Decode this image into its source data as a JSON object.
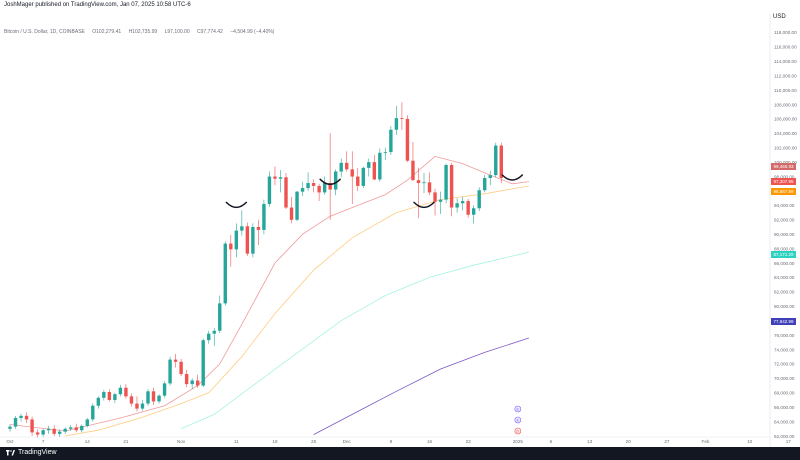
{
  "header": {
    "publisher": "JoshMager published on TradingView.com, Jan 07, 2025 10:58 UTC-6",
    "currency": "USD",
    "symbol_parts": [
      "Bitcoin / U.S. Dollar, 1D, COINBASE",
      "O102,279.41",
      "H102,735.99",
      "L97,100.00",
      "C97,774.42",
      "−4,504.99 (−4.40%)"
    ]
  },
  "footer": {
    "brand": "TradingView"
  },
  "price_tags": [
    {
      "label": "99,455.93",
      "value": 99456,
      "color": "#d36a6a"
    },
    {
      "label": "97,307.95",
      "value": 97308,
      "color": "#ef5350"
    },
    {
      "label": "95,857.59",
      "value": 95858,
      "color": "#ff9800"
    },
    {
      "label": "87,171.29",
      "value": 87171,
      "color": "#2bd2c0"
    },
    {
      "label": "77,842.99",
      "value": 77843,
      "color": "#3f3fb8"
    }
  ],
  "event_markers": [
    "E",
    "E",
    "D"
  ],
  "chart_data": {
    "type": "candlestick",
    "title": "Bitcoin / U.S. Dollar, 1D, COINBASE",
    "ylim": [
      62000,
      120000
    ],
    "y_ticks": [
      62000,
      64000,
      66000,
      68000,
      70000,
      72000,
      74000,
      76000,
      78000,
      80000,
      82000,
      84000,
      86000,
      88000,
      90000,
      92000,
      94000,
      96000,
      98000,
      100000,
      102000,
      104000,
      106000,
      108000,
      110000,
      112000,
      114000,
      116000,
      118000
    ],
    "y_tick_labels": [
      "62,000.00",
      "64,000.00",
      "66,000.00",
      "68,000.00",
      "70,000.00",
      "72,000.00",
      "74,000.00",
      "76,000.00",
      "78,000.00",
      "80,000.00",
      "82,000.00",
      "84,000.00",
      "86,000.00",
      "88,000.00",
      "90,000.00",
      "92,000.00",
      "94,000.00",
      "96,000.00",
      "98,000.00",
      "100,000.00",
      "102,000.00",
      "104,000.00",
      "106,000.00",
      "108,000.00",
      "110,000.00",
      "112,000.00",
      "114,000.00",
      "116,000.00",
      "118,000.00"
    ],
    "x_ticks": [
      {
        "day": 0,
        "label": "Oct"
      },
      {
        "day": 6,
        "label": "7"
      },
      {
        "day": 14,
        "label": "14"
      },
      {
        "day": 21,
        "label": "21"
      },
      {
        "day": 31,
        "label": "Nov"
      },
      {
        "day": 41,
        "label": "11"
      },
      {
        "day": 48,
        "label": "18"
      },
      {
        "day": 55,
        "label": "25"
      },
      {
        "day": 61,
        "label": "Dec"
      },
      {
        "day": 69,
        "label": "9"
      },
      {
        "day": 76,
        "label": "16"
      },
      {
        "day": 83,
        "label": "23"
      },
      {
        "day": 92,
        "label": "2025"
      },
      {
        "day": 98,
        "label": "6"
      },
      {
        "day": 105,
        "label": "13"
      },
      {
        "day": 112,
        "label": "20"
      },
      {
        "day": 119,
        "label": "27"
      },
      {
        "day": 126,
        "label": "Feb"
      },
      {
        "day": 134,
        "label": "10"
      },
      {
        "day": 141,
        "label": "17"
      },
      {
        "day": 148,
        "label": "24"
      }
    ],
    "candles": [
      [
        63000,
        63600,
        62600,
        63300
      ],
      [
        63300,
        64800,
        63000,
        64500
      ],
      [
        64500,
        65100,
        64000,
        64800
      ],
      [
        64800,
        65300,
        63800,
        64300
      ],
      [
        64300,
        64700,
        62000,
        62500
      ],
      [
        62500,
        62900,
        61800,
        62200
      ],
      [
        62200,
        63000,
        61900,
        62800
      ],
      [
        62800,
        63400,
        62300,
        63000
      ],
      [
        63000,
        63500,
        62000,
        62300
      ],
      [
        62300,
        62900,
        61900,
        62600
      ],
      [
        62600,
        63200,
        62300,
        63000
      ],
      [
        63000,
        63500,
        62700,
        63200
      ],
      [
        63200,
        63700,
        62500,
        62800
      ],
      [
        62800,
        63600,
        62500,
        63400
      ],
      [
        63400,
        64500,
        63200,
        64300
      ],
      [
        64300,
        66500,
        64000,
        66200
      ],
      [
        66200,
        67500,
        65800,
        67300
      ],
      [
        67300,
        68400,
        66900,
        68100
      ],
      [
        68100,
        68500,
        66800,
        67000
      ],
      [
        67000,
        68000,
        66600,
        67800
      ],
      [
        67800,
        69100,
        67500,
        68700
      ],
      [
        68700,
        69200,
        67200,
        67500
      ],
      [
        67500,
        67900,
        66100,
        66500
      ],
      [
        66500,
        67500,
        65400,
        65800
      ],
      [
        65800,
        67000,
        65500,
        66500
      ],
      [
        66500,
        68500,
        66200,
        68200
      ],
      [
        68200,
        68700,
        66300,
        66800
      ],
      [
        66800,
        67800,
        66500,
        67600
      ],
      [
        67600,
        69600,
        67300,
        69300
      ],
      [
        69300,
        73000,
        69000,
        72600
      ],
      [
        72600,
        73400,
        71500,
        72300
      ],
      [
        72300,
        72700,
        70300,
        70600
      ],
      [
        70600,
        71200,
        68800,
        69200
      ],
      [
        69200,
        70000,
        68500,
        69700
      ],
      [
        69700,
        70500,
        68700,
        69000
      ],
      [
        69000,
        75500,
        68800,
        75300
      ],
      [
        75300,
        76600,
        74800,
        76200
      ],
      [
        76200,
        77000,
        74500,
        76600
      ],
      [
        76600,
        81500,
        76300,
        80400
      ],
      [
        80400,
        89000,
        80100,
        88700
      ],
      [
        88700,
        89900,
        85500,
        87900
      ],
      [
        87900,
        91500,
        86800,
        90500
      ],
      [
        90500,
        93300,
        89800,
        91100
      ],
      [
        91100,
        91600,
        87000,
        87300
      ],
      [
        87300,
        91500,
        86800,
        91000
      ],
      [
        91000,
        92000,
        88500,
        90600
      ],
      [
        90600,
        94800,
        90000,
        94200
      ],
      [
        94200,
        98700,
        93800,
        98000
      ],
      [
        98000,
        99400,
        96800,
        97700
      ],
      [
        97700,
        98900,
        95800,
        97900
      ],
      [
        97900,
        98500,
        93500,
        93700
      ],
      [
        93700,
        95200,
        91500,
        92000
      ],
      [
        92000,
        96000,
        91800,
        95900
      ],
      [
        95900,
        97300,
        95300,
        96400
      ],
      [
        96400,
        98600,
        96000,
        97100
      ],
      [
        97100,
        97600,
        95800,
        96700
      ],
      [
        96700,
        97000,
        94600,
        95800
      ],
      [
        95800,
        98000,
        95500,
        97100
      ],
      [
        97100,
        104000,
        92000,
        96200
      ],
      [
        96200,
        99000,
        95400,
        98700
      ],
      [
        98700,
        100500,
        97900,
        99900
      ],
      [
        99900,
        101500,
        98700,
        99000
      ],
      [
        99000,
        101500,
        94200,
        98000
      ],
      [
        98000,
        99200,
        96000,
        96700
      ],
      [
        96700,
        99400,
        96400,
        99200
      ],
      [
        99200,
        100500,
        98000,
        100000
      ],
      [
        100000,
        101000,
        97500,
        97600
      ],
      [
        97600,
        101900,
        97300,
        101300
      ],
      [
        101300,
        102000,
        100300,
        101400
      ],
      [
        101400,
        105000,
        101000,
        104500
      ],
      [
        104500,
        107800,
        103800,
        106100
      ],
      [
        106100,
        108300,
        104500,
        106000
      ],
      [
        106000,
        106500,
        100000,
        100200
      ],
      [
        100200,
        102800,
        97400,
        97500
      ],
      [
        97500,
        99200,
        92200,
        97100
      ],
      [
        97100,
        98500,
        95700,
        97200
      ],
      [
        97200,
        98600,
        95400,
        95800
      ],
      [
        95800,
        96300,
        92600,
        94500
      ],
      [
        94500,
        95900,
        92800,
        94800
      ],
      [
        94800,
        99800,
        94300,
        99600
      ],
      [
        99600,
        99900,
        92500,
        93700
      ],
      [
        93700,
        95000,
        93000,
        94300
      ],
      [
        94300,
        95200,
        93300,
        94600
      ],
      [
        94600,
        94900,
        92300,
        92700
      ],
      [
        92700,
        94000,
        91500,
        93600
      ],
      [
        93600,
        96500,
        93200,
        96100
      ],
      [
        96100,
        98200,
        95800,
        97800
      ],
      [
        97800,
        98800,
        96800,
        98200
      ],
      [
        98200,
        102700,
        97900,
        102300
      ],
      [
        102300,
        102700,
        97100,
        97800
      ]
    ],
    "series": [
      {
        "name": "",
        "color": "#ef9a9a",
        "values": []
      },
      {
        "name": "",
        "color": "#ffcc80",
        "values": []
      },
      {
        "name": "",
        "color": "#a5f3e1",
        "values": []
      },
      {
        "name": "",
        "color": "#7e57c2",
        "values": []
      }
    ],
    "ma_points": {
      "ma1": [
        [
          0,
          63600
        ],
        [
          10,
          62700
        ],
        [
          20,
          64500
        ],
        [
          28,
          66200
        ],
        [
          34,
          69000
        ],
        [
          38,
          72000
        ],
        [
          42,
          77500
        ],
        [
          48,
          86000
        ],
        [
          53,
          90000
        ],
        [
          58,
          92500
        ],
        [
          63,
          94000
        ],
        [
          68,
          95500
        ],
        [
          72,
          97500
        ],
        [
          77,
          100800
        ],
        [
          82,
          99800
        ],
        [
          87,
          98200
        ],
        [
          91,
          97000
        ],
        [
          94,
          97300
        ]
      ],
      "ma2": [
        [
          10,
          62000
        ],
        [
          16,
          62800
        ],
        [
          24,
          64600
        ],
        [
          31,
          66500
        ],
        [
          36,
          68000
        ],
        [
          42,
          73000
        ],
        [
          48,
          79000
        ],
        [
          55,
          85000
        ],
        [
          62,
          89500
        ],
        [
          70,
          93000
        ],
        [
          78,
          94800
        ],
        [
          86,
          95600
        ],
        [
          94,
          96700
        ]
      ],
      "ma3": [
        [
          31,
          63000
        ],
        [
          37,
          65000
        ],
        [
          44,
          69000
        ],
        [
          52,
          73500
        ],
        [
          60,
          78000
        ],
        [
          68,
          81500
        ],
        [
          76,
          84000
        ],
        [
          84,
          85700
        ],
        [
          94,
          87500
        ]
      ],
      "ma4": [
        [
          55,
          62200
        ],
        [
          62,
          65000
        ],
        [
          70,
          68200
        ],
        [
          78,
          71300
        ],
        [
          86,
          73600
        ],
        [
          94,
          75600
        ]
      ]
    },
    "drawings": [
      [
        41,
        94000
      ],
      [
        58,
        97200
      ],
      [
        75,
        94000
      ],
      [
        91,
        97800
      ]
    ]
  }
}
